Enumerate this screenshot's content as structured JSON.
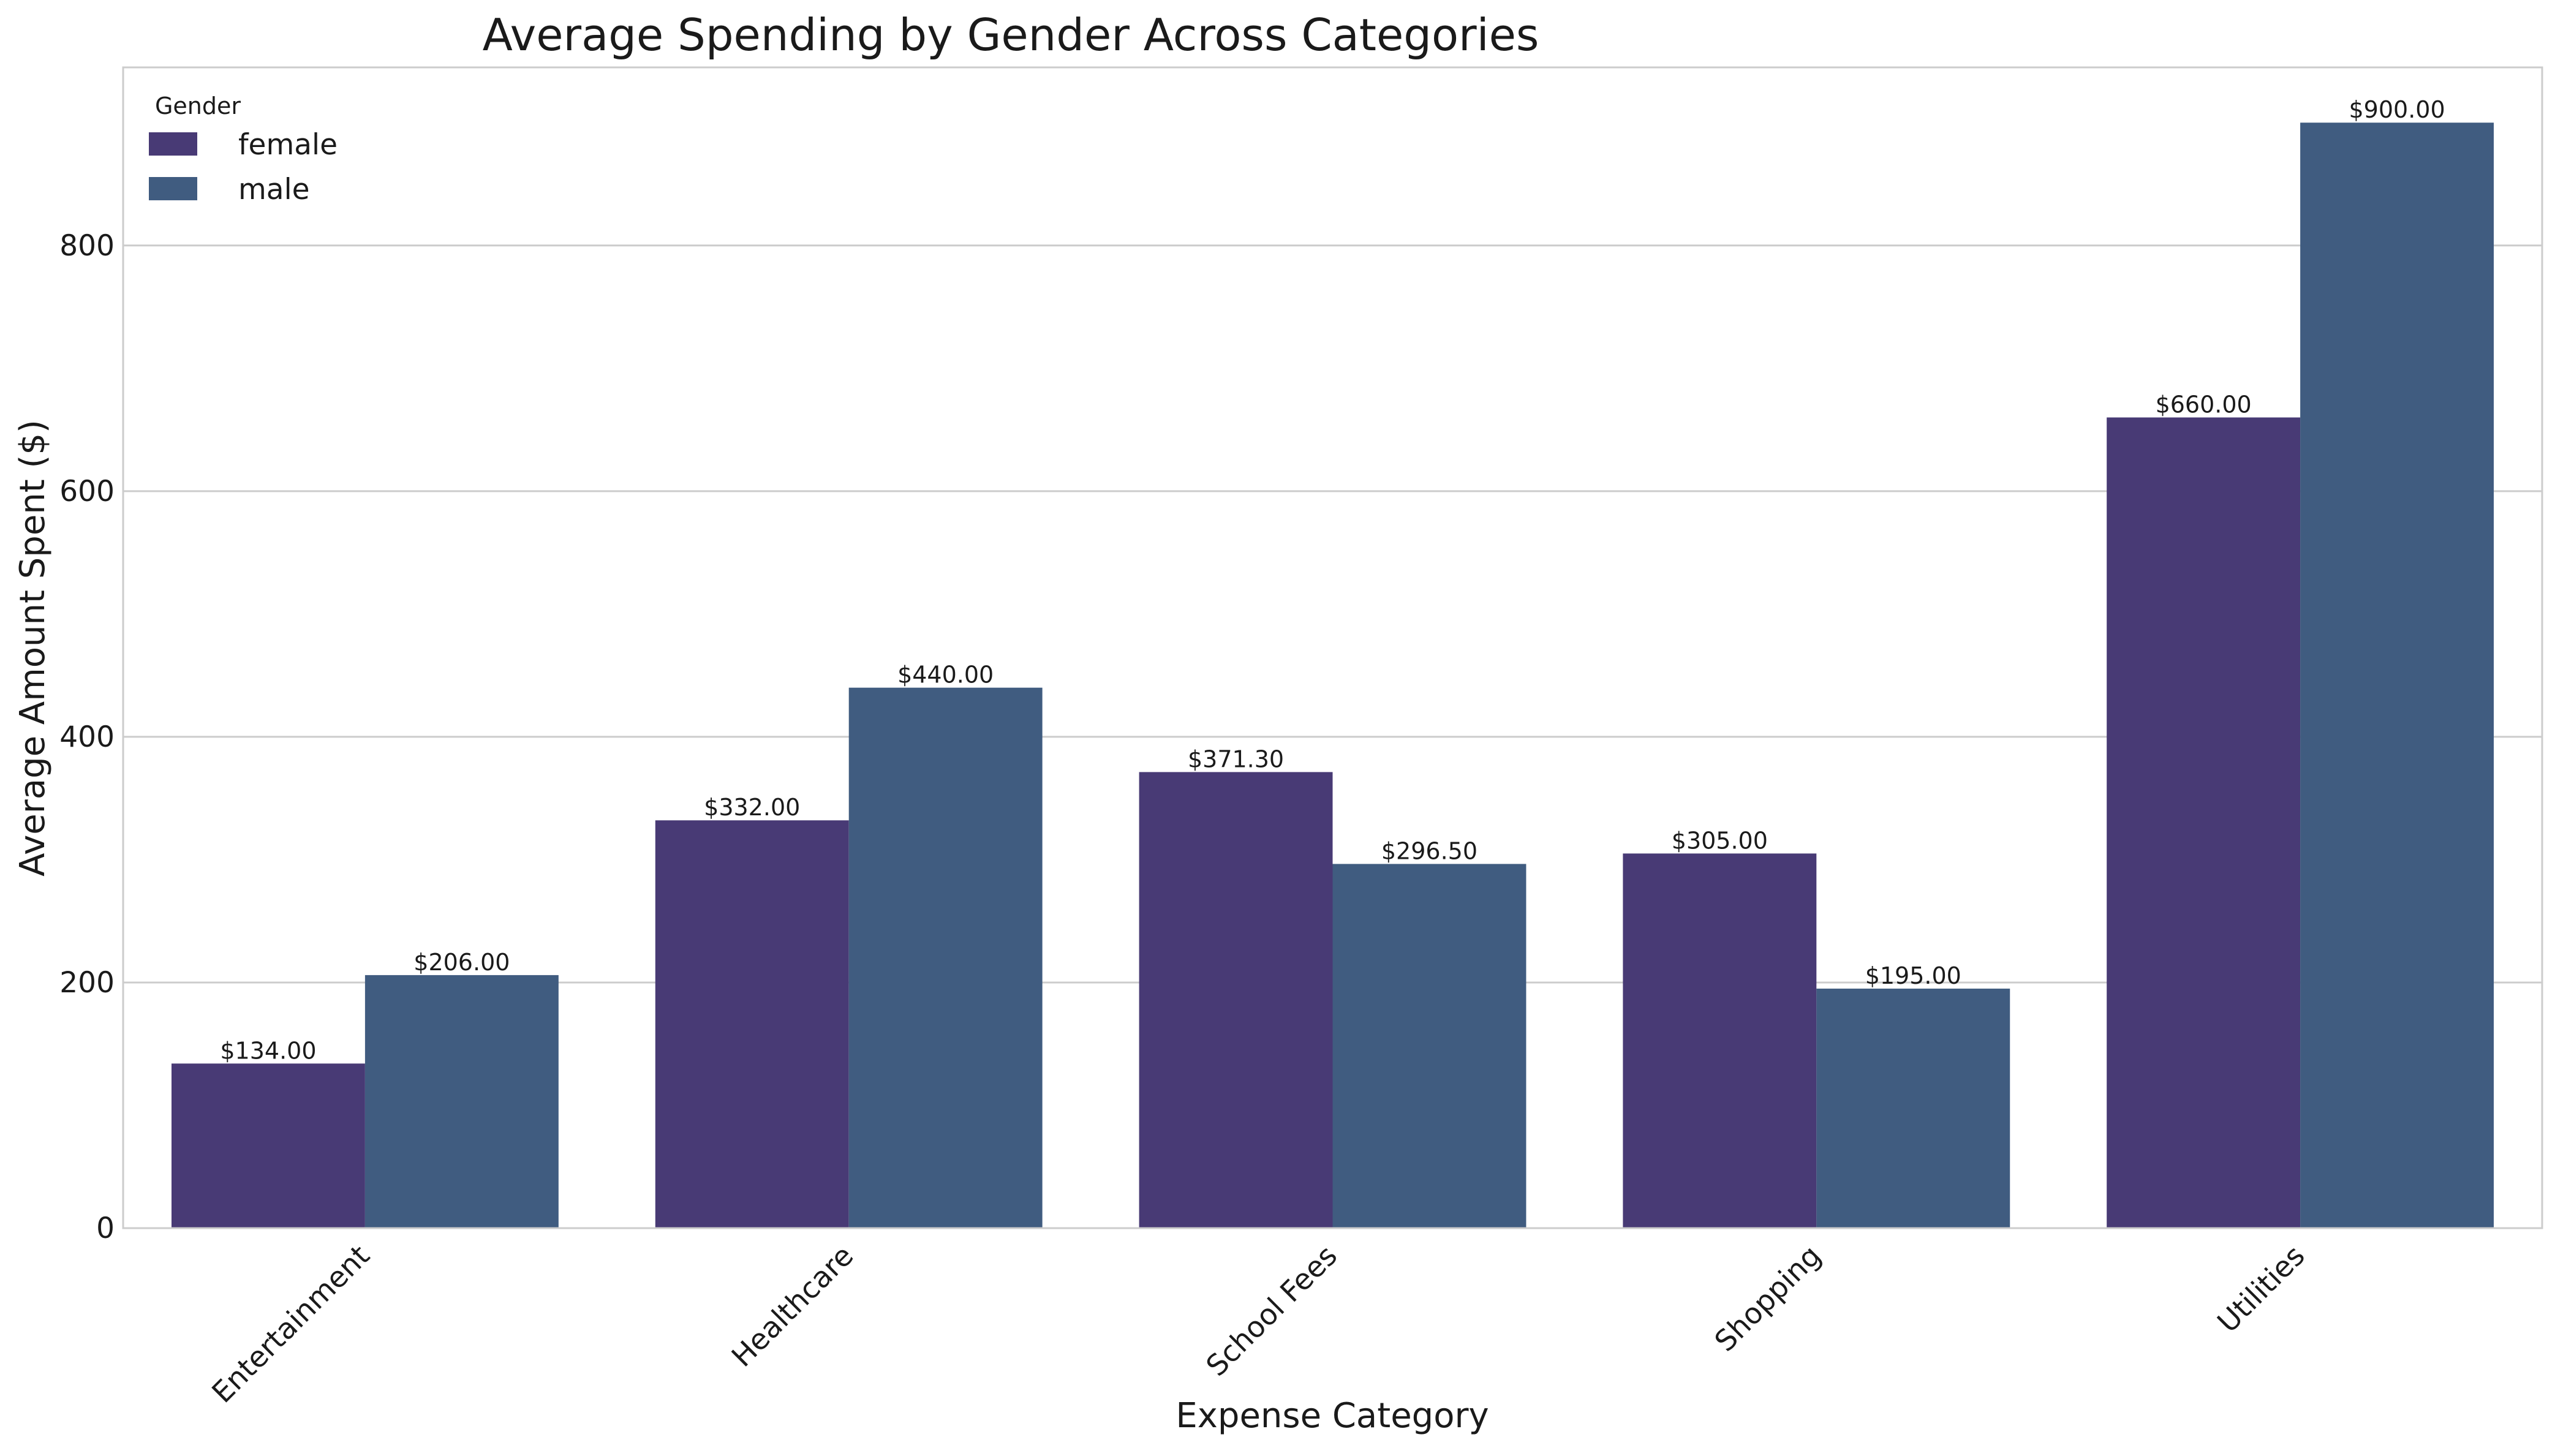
{
  "chart_data": {
    "type": "bar",
    "title": "Average Spending by Gender Across Categories",
    "xlabel": "Expense Category",
    "ylabel": "Average Amount Spent ($)",
    "categories": [
      "Entertainment",
      "Healthcare",
      "School Fees",
      "Shopping",
      "Utilities"
    ],
    "series": [
      {
        "name": "female",
        "color": "#483a75",
        "values": [
          134.0,
          332.0,
          371.3,
          305.0,
          660.0
        ]
      },
      {
        "name": "male",
        "color": "#405c80",
        "values": [
          206.0,
          440.0,
          296.5,
          195.0,
          900.0
        ]
      }
    ],
    "value_labels": [
      [
        "$134.00",
        "$332.00",
        "$371.30",
        "$305.00",
        "$660.00"
      ],
      [
        "$206.00",
        "$440.00",
        "$296.50",
        "$195.00",
        "$900.00"
      ]
    ],
    "ylim": [
      0,
      945
    ],
    "yticks": [
      0,
      200,
      400,
      600,
      800
    ],
    "grid": true,
    "legend": {
      "title": "Gender",
      "placement": "top-left"
    }
  }
}
